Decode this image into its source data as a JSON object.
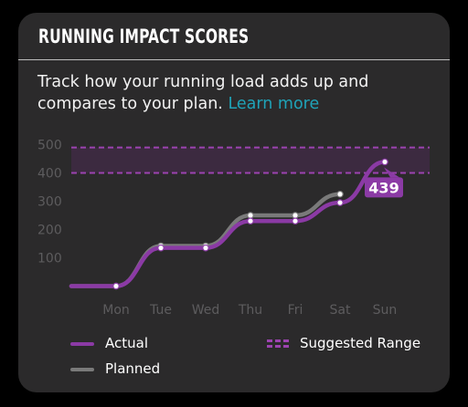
{
  "card": {
    "title": "RUNNING IMPACT SCORES",
    "description": "Track how your running load adds up and compares to your plan.",
    "link_label": "Learn more"
  },
  "legend": {
    "actual_label": "Actual",
    "planned_label": "Planned",
    "range_label": "Suggested Range"
  },
  "colors": {
    "actual": "#8b3aa5",
    "planned": "#7a7a7a",
    "range_fill": "#3c2a40",
    "range_border": "#9c43b0",
    "callout": "#8b3aa5"
  },
  "chart_data": {
    "type": "line",
    "categories": [
      "",
      "Mon",
      "Tue",
      "Wed",
      "Thu",
      "Fri",
      "Sat",
      "Sun"
    ],
    "y_ticks": [
      100,
      200,
      300,
      400,
      500
    ],
    "ylim": [
      0,
      500
    ],
    "suggested_range": [
      400,
      490
    ],
    "series": [
      {
        "name": "Actual",
        "values": [
          0,
          0,
          135,
          135,
          230,
          230,
          295,
          439
        ]
      },
      {
        "name": "Planned",
        "values": [
          0,
          0,
          142,
          142,
          250,
          250,
          325,
          null
        ]
      }
    ],
    "callout": {
      "category": "Sun",
      "label": "439"
    }
  }
}
